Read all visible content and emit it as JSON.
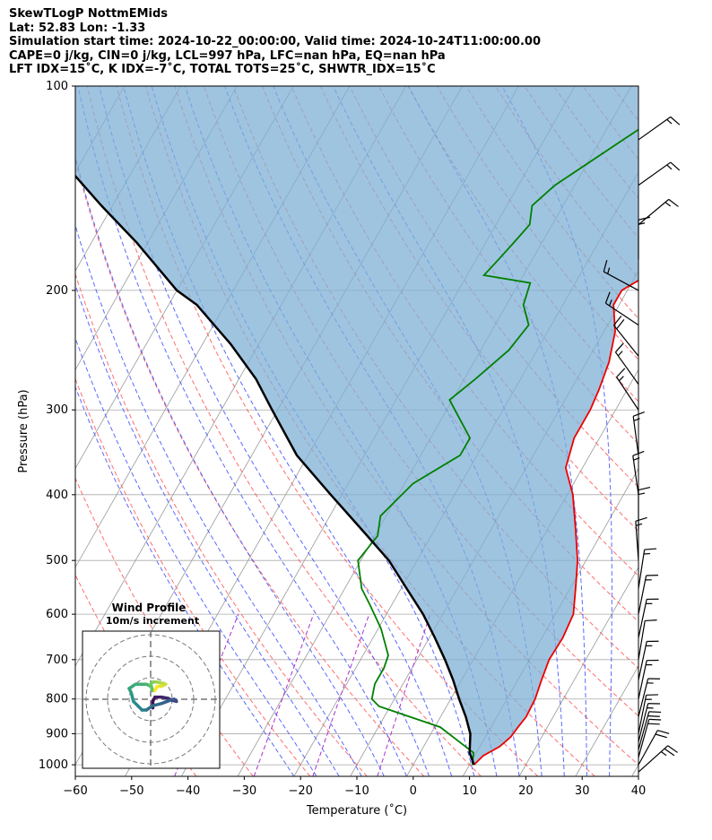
{
  "header": {
    "line1": "SkewTLogP NottmEMids",
    "line2": "Lat: 52.83   Lon: -1.33",
    "line3": "Simulation start time: 2024-10-22_00:00:00, Valid time: 2024-10-24T11:00:00.00",
    "line4": "CAPE=0 j/kg, CIN=0 j/kg, LCL=997 hPa, LFC=nan hPa, EQ=nan hPa",
    "line5": "LFT IDX=15˚C, K IDX=-7˚C, TOTAL TOTS=25˚C, SHWTR_IDX=15˚C"
  },
  "colors": {
    "temperature": "#ee0000",
    "dewpoint": "#008000",
    "parcel": "#000000",
    "fill": "#7fb0d6",
    "dry_adiabat": "#ff5555",
    "moist_adiabat": "#3344ff",
    "mixing_ratio": "#aa33cc",
    "isotherm": "#999999",
    "isobar": "#aaaaaa"
  },
  "chart_data": [
    {
      "type": "line",
      "subtype": "skew-t log-p",
      "xlabel": "Temperature (˚C)",
      "ylabel": "Pressure (hPa)",
      "xlim": [
        -60,
        40
      ],
      "ylim": [
        1040,
        100
      ],
      "y_scale": "log",
      "x_ticks": [
        -60,
        -50,
        -40,
        -30,
        -20,
        -10,
        0,
        10,
        20,
        30,
        40
      ],
      "y_ticks": [
        100,
        200,
        300,
        400,
        500,
        600,
        700,
        800,
        900,
        1000
      ],
      "grid": true,
      "series": [
        {
          "id": "temperature",
          "color": "red",
          "points": [
            [
              10.8,
              1000
            ],
            [
              11.5,
              970
            ],
            [
              13.5,
              940
            ],
            [
              14.5,
              910
            ],
            [
              14.8,
              880
            ],
            [
              15.2,
              850
            ],
            [
              15,
              800
            ],
            [
              14.2,
              750
            ],
            [
              13.5,
              700
            ],
            [
              13.7,
              650
            ],
            [
              13.2,
              600
            ],
            [
              11,
              550
            ],
            [
              8.5,
              500
            ],
            [
              5,
              450
            ],
            [
              1,
              400
            ],
            [
              -3,
              365
            ],
            [
              -4.5,
              330
            ],
            [
              -4.5,
              300
            ],
            [
              -5,
              280
            ],
            [
              -6,
              255
            ],
            [
              -8,
              230
            ],
            [
              -11,
              210
            ],
            [
              -11,
              200
            ],
            [
              -8,
              190
            ],
            [
              -3.5,
              170
            ],
            [
              -1,
              160
            ],
            [
              0,
              150
            ],
            [
              0.5,
              140
            ],
            [
              2,
              125
            ],
            [
              3,
              115
            ],
            [
              4.5,
              100
            ]
          ]
        },
        {
          "id": "dewpoint",
          "color": "green",
          "points": [
            [
              10.5,
              1000
            ],
            [
              9.5,
              960
            ],
            [
              1,
              880
            ],
            [
              -12,
              820
            ],
            [
              -14,
              800
            ],
            [
              -15,
              760
            ],
            [
              -15,
              720
            ],
            [
              -15.5,
              690
            ],
            [
              -19.5,
              630
            ],
            [
              -24,
              580
            ],
            [
              -27,
              550
            ],
            [
              -30.5,
              500
            ],
            [
              -29.5,
              460
            ],
            [
              -31,
              430
            ],
            [
              -28.5,
              385
            ],
            [
              -23,
              350
            ],
            [
              -23,
              330
            ],
            [
              -30.5,
              290
            ],
            [
              -28,
              270
            ],
            [
              -25,
              245
            ],
            [
              -24,
              225
            ],
            [
              -27,
              210
            ],
            [
              -28,
              195
            ],
            [
              -37,
              190
            ],
            [
              -36,
              180
            ],
            [
              -35,
              170
            ],
            [
              -34,
              160
            ],
            [
              -35.5,
              150
            ],
            [
              -33.5,
              140
            ],
            [
              -26,
              120
            ],
            [
              -17,
              100
            ]
          ]
        },
        {
          "id": "parcel",
          "color": "black",
          "points": [
            [
              10.8,
              1000
            ],
            [
              8.8,
              960
            ],
            [
              7,
              900
            ],
            [
              4.5,
              850
            ],
            [
              1.5,
              800
            ],
            [
              -1.5,
              750
            ],
            [
              -5,
              700
            ],
            [
              -9,
              650
            ],
            [
              -13.5,
              600
            ],
            [
              -19,
              550
            ],
            [
              -25,
              500
            ],
            [
              -33,
              450
            ],
            [
              -42,
              400
            ],
            [
              -52,
              350
            ],
            [
              -61,
              300
            ],
            [
              -67,
              270
            ],
            [
              -75,
              240
            ],
            [
              -85,
              210
            ],
            [
              -90,
              200
            ],
            [
              -102,
              170
            ],
            [
              -112,
              150
            ],
            [
              -120,
              135
            ],
            [
              -130,
              120
            ],
            [
              -140,
              100
            ]
          ]
        }
      ]
    },
    {
      "type": "line",
      "subtype": "hodograph",
      "title": "Wind Profile",
      "subtitle": "10m/s increment",
      "ring_increment_ms": 10,
      "points": [
        [
          1,
          -4
        ],
        [
          1,
          -1
        ],
        [
          2,
          1
        ],
        [
          5,
          1
        ],
        [
          8,
          0.5
        ],
        [
          10,
          -0.5
        ],
        [
          12,
          -1
        ],
        [
          11,
          0
        ],
        [
          9,
          -0.5
        ],
        [
          5,
          -2
        ],
        [
          1,
          -3
        ],
        [
          -2,
          -5
        ],
        [
          -4,
          -5
        ],
        [
          -6,
          -3
        ],
        [
          -8,
          -1
        ],
        [
          -9,
          3
        ],
        [
          -10,
          5
        ],
        [
          -7,
          7
        ],
        [
          -2,
          7
        ],
        [
          0,
          6
        ],
        [
          1,
          4
        ],
        [
          0,
          7
        ],
        [
          1,
          8
        ],
        [
          3,
          8
        ],
        [
          5,
          7.5
        ],
        [
          7,
          7
        ],
        [
          5,
          6
        ],
        [
          3,
          6
        ],
        [
          2,
          4
        ]
      ]
    },
    {
      "type": "wind-barbs",
      "unit": "kt",
      "barbs": [
        {
          "p": 1025,
          "u": -20,
          "v": -18
        },
        {
          "p": 1000,
          "u": -10,
          "v": -18
        },
        {
          "p": 975,
          "u": -5,
          "v": -18
        },
        {
          "p": 950,
          "u": -5,
          "v": -18
        },
        {
          "p": 925,
          "u": -4,
          "v": -16
        },
        {
          "p": 900,
          "u": -3,
          "v": -15
        },
        {
          "p": 850,
          "u": -4,
          "v": -16
        },
        {
          "p": 800,
          "u": -3,
          "v": -14
        },
        {
          "p": 750,
          "u": -3,
          "v": -14
        },
        {
          "p": 700,
          "u": -2,
          "v": -12
        },
        {
          "p": 650,
          "u": -3,
          "v": -14
        },
        {
          "p": 600,
          "u": -3,
          "v": -15
        },
        {
          "p": 550,
          "u": -2,
          "v": -13
        },
        {
          "p": 500,
          "u": 1,
          "v": -14
        },
        {
          "p": 450,
          "u": 0,
          "v": -14
        },
        {
          "p": 400,
          "u": 2,
          "v": -14
        },
        {
          "p": 350,
          "u": 2,
          "v": -15
        },
        {
          "p": 300,
          "u": 8,
          "v": -12
        },
        {
          "p": 275,
          "u": 10,
          "v": -14
        },
        {
          "p": 250,
          "u": 12,
          "v": -15
        },
        {
          "p": 225,
          "u": 12,
          "v": -8
        },
        {
          "p": 200,
          "u": 13,
          "v": -7
        },
        {
          "p": 180,
          "u": 0,
          "v": -15
        },
        {
          "p": 160,
          "u": -12,
          "v": -10
        },
        {
          "p": 140,
          "u": -14,
          "v": -10
        },
        {
          "p": 120,
          "u": -14,
          "v": -10
        }
      ]
    }
  ]
}
